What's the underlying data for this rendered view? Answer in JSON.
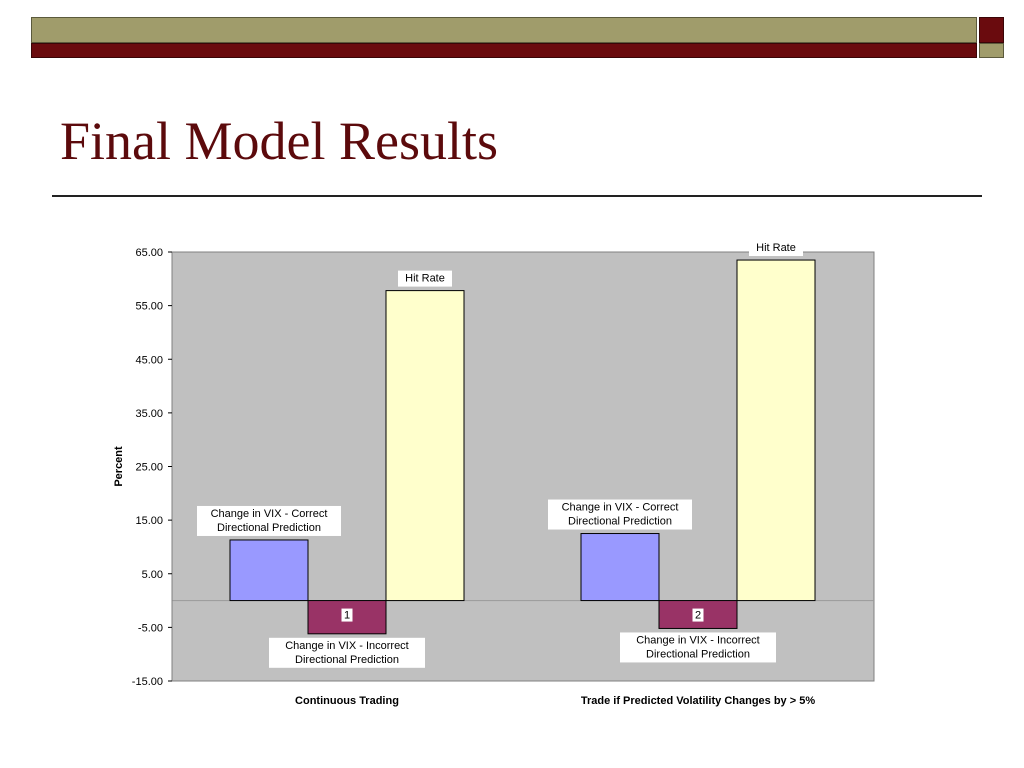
{
  "slide": {
    "title": "Final Model Results"
  },
  "colors": {
    "olive": "#a09c6b",
    "maroon": "#6a0b0e",
    "plot_bg": "#c0c0c0",
    "correct": "#9999ff",
    "incorrect": "#993366",
    "hit_rate": "#ffffcc"
  },
  "chart_data": {
    "type": "bar",
    "ylabel": "Percent",
    "xlabel": "",
    "ylim": [
      -15,
      65
    ],
    "yticks": [
      "65.00",
      "55.00",
      "45.00",
      "35.00",
      "25.00",
      "15.00",
      "5.00",
      "-5.00",
      "-15.00"
    ],
    "categories": [
      "Continuous Trading",
      "Trade if Predicted Volatility Changes by > 5%"
    ],
    "grid": false,
    "series": [
      {
        "name": "Change in VIX - Correct Directional Prediction",
        "values": [
          11.3,
          12.5
        ]
      },
      {
        "name": "Change in VIX - Incorrect Directional Prediction",
        "values": [
          -6.2,
          -5.2
        ]
      },
      {
        "name": "Hit Rate",
        "values": [
          57.8,
          63.5
        ]
      }
    ],
    "annotations": [
      {
        "text": "Change in VIX - Correct Directional Prediction",
        "series": 0,
        "category": 0,
        "lines": [
          "Change in VIX - Correct",
          "Directional Prediction"
        ]
      },
      {
        "text": "Change in VIX - Incorrect Directional Prediction",
        "series": 1,
        "category": 0,
        "lines": [
          "Change in VIX - Incorrect",
          "Directional Prediction"
        ]
      },
      {
        "text": "Hit Rate",
        "series": 2,
        "category": 0,
        "lines": [
          "Hit Rate"
        ]
      },
      {
        "text": "Change in VIX - Correct Directional Prediction",
        "series": 0,
        "category": 1,
        "lines": [
          "Change in VIX - Correct",
          "Directional Prediction"
        ]
      },
      {
        "text": "Change in VIX - Incorrect Directional Prediction",
        "series": 1,
        "category": 1,
        "lines": [
          "Change in VIX - Incorrect",
          "Directional Prediction"
        ]
      },
      {
        "text": "Hit Rate",
        "series": 2,
        "category": 1,
        "lines": [
          "Hit Rate"
        ]
      }
    ],
    "group_labels": [
      "1",
      "2"
    ]
  }
}
